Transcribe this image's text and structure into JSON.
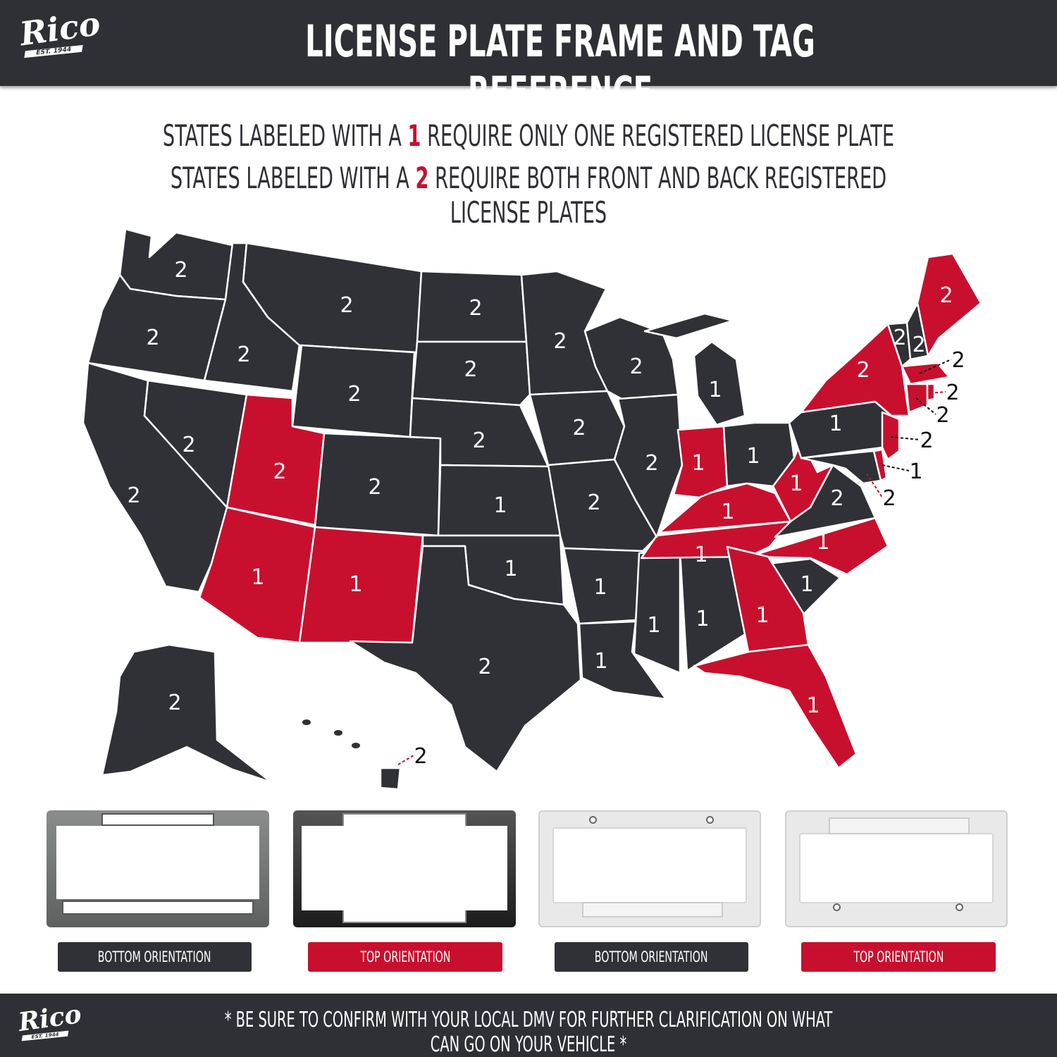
{
  "brand": {
    "logo_text": "Rico",
    "logo_sub": "EST. 1944"
  },
  "header": {
    "title": "LICENSE PLATE FRAME AND TAG REFERENCE"
  },
  "legend": {
    "line1": {
      "before": "STATES LABELED WITH A ",
      "number": "1",
      "after": " REQUIRE ONLY ONE REGISTERED LICENSE PLATE"
    },
    "line2": {
      "before": "STATES LABELED WITH A ",
      "number": "2",
      "after": " REQUIRE BOTH FRONT AND BACK REGISTERED LICENSE PLATES"
    }
  },
  "colors": {
    "dark": "#2f3136",
    "accent": "#c8102e"
  },
  "map": {
    "states": {
      "WA": "2",
      "OR": "2",
      "CA": "2",
      "NV": "2",
      "ID": "2",
      "MT": "2",
      "WY": "2",
      "UT": "2",
      "CO": "2",
      "AZ": "1",
      "NM": "1",
      "ND": "2",
      "SD": "2",
      "NE": "2",
      "KS": "1",
      "OK": "1",
      "TX": "2",
      "MN": "2",
      "IA": "2",
      "MO": "2",
      "AR": "1",
      "LA": "1",
      "WI": "2",
      "IL": "2",
      "MI": "1",
      "IN": "1",
      "OH": "1",
      "KY": "1",
      "TN": "1",
      "MS": "1",
      "AL": "1",
      "GA": "1",
      "FL": "1",
      "SC": "1",
      "NC": "1",
      "VA": "2",
      "WV": "1",
      "PA": "1",
      "NY": "2",
      "VT": "2",
      "NH": "2",
      "ME": "2",
      "MA": "2",
      "RI": "2",
      "CT": "2",
      "NJ": "2",
      "DE": "1",
      "MD": "2",
      "AK": "2",
      "HI": "2"
    }
  },
  "frames": [
    {
      "label": "BOTTOM ORIENTATION",
      "style": "dark"
    },
    {
      "label": "TOP ORIENTATION",
      "style": "accent"
    },
    {
      "label": "BOTTOM ORIENTATION",
      "style": "dark"
    },
    {
      "label": "TOP ORIENTATION",
      "style": "accent"
    }
  ],
  "footer": {
    "note": "* BE SURE TO CONFIRM WITH YOUR LOCAL DMV FOR FURTHER CLARIFICATION ON WHAT CAN GO ON YOUR VEHICLE *"
  }
}
